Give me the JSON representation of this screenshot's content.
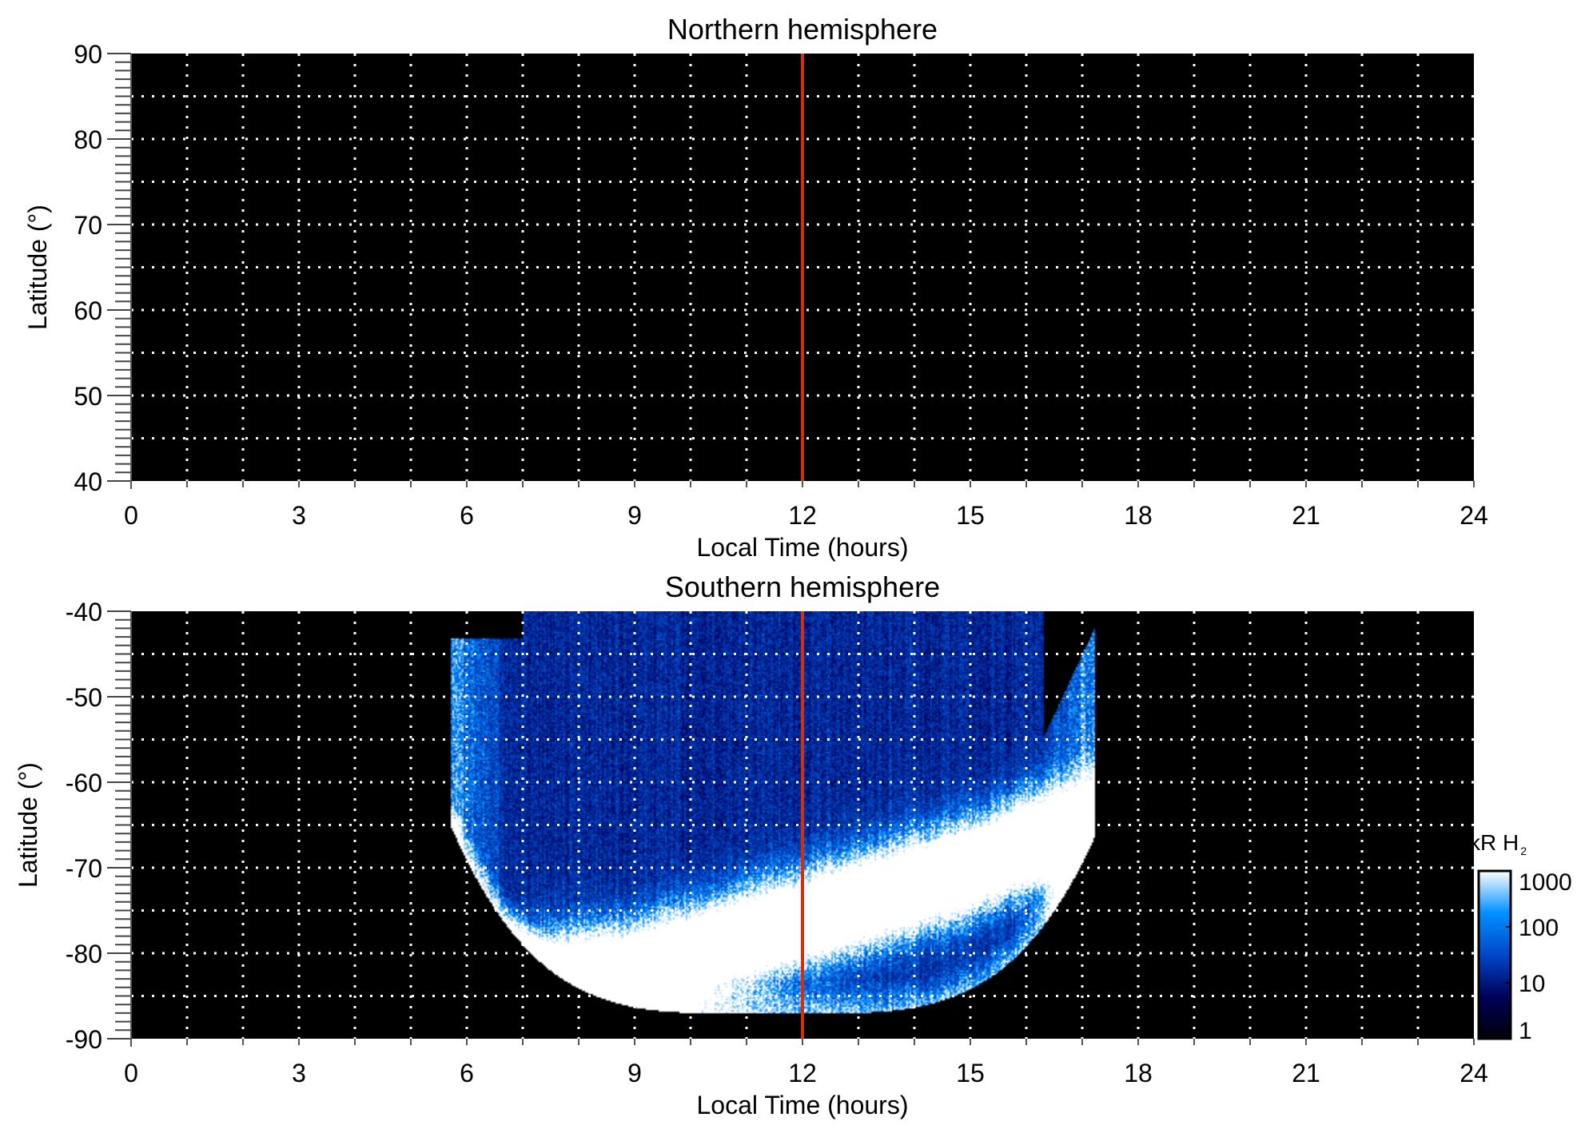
{
  "chart_data": [
    {
      "type": "heatmap",
      "title": "Northern hemisphere",
      "xlabel": "Local Time (hours)",
      "ylabel": "Latitude (°)",
      "xlim": [
        0,
        24
      ],
      "ylim": [
        40,
        90
      ],
      "xticks": [
        "0",
        "3",
        "6",
        "9",
        "12",
        "15",
        "18",
        "21",
        "24"
      ],
      "yticks": [
        "40",
        "50",
        "60",
        "70",
        "80",
        "90"
      ],
      "grid": true,
      "marker_line": {
        "x": 12,
        "color": "#d03010"
      },
      "background": "#000000",
      "emission": "none"
    },
    {
      "type": "heatmap",
      "title": "Southern hemisphere",
      "xlabel": "Local Time (hours)",
      "ylabel": "Latitude (°)",
      "xlim": [
        0,
        24
      ],
      "ylim": [
        -90,
        -40
      ],
      "xticks": [
        "0",
        "3",
        "6",
        "9",
        "12",
        "15",
        "18",
        "21",
        "24"
      ],
      "yticks": [
        "-90",
        "-80",
        "-70",
        "-60",
        "-50",
        "-40"
      ],
      "grid": true,
      "marker_line": {
        "x": 12,
        "color": "#d03010"
      },
      "background": "#000000",
      "emission_coverage_lt": [
        5.7,
        17.2
      ],
      "emission_coverage_lat": [
        -87,
        -40
      ],
      "auroral_oval_peak_lat": [
        {
          "lt": 9,
          "lat": -82
        },
        {
          "lt": 12,
          "lat": -76
        },
        {
          "lt": 15,
          "lat": -70
        },
        {
          "lt": 16,
          "lat": -67
        }
      ]
    }
  ],
  "colorbar": {
    "label": "kR H",
    "label_subscript": "2",
    "scale": "log",
    "ticks": [
      "1",
      "10",
      "100",
      "1000"
    ],
    "range": [
      1,
      1000
    ],
    "colors": [
      "#000008",
      "#00005a",
      "#0048c8",
      "#0090ff",
      "#ffffff"
    ]
  }
}
